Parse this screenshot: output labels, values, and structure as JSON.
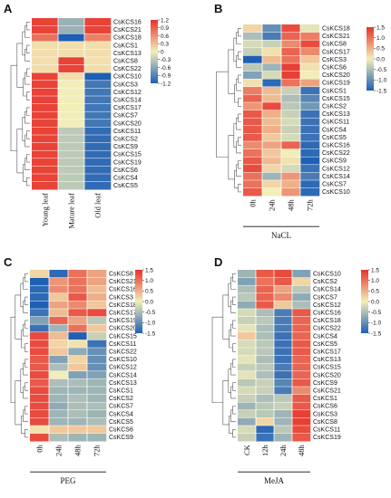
{
  "panels_colors": {
    "low": "#1f5fb4",
    "mid": "#f2eeb8",
    "high": "#e8322b"
  },
  "chart_data": [
    {
      "type": "heatmap",
      "panel": "A",
      "columns": [
        "Young leaf",
        "Mature leaf",
        "Old leaf"
      ],
      "rows": [
        "CsKCS16",
        "CsKCS21",
        "CsKCS18",
        "CsKCS1",
        "CsKCS13",
        "CsKCS8",
        "CsKCS22",
        "CsKCS10",
        "CsKCS3",
        "CsKCS12",
        "CsKCS14",
        "CsKCS17",
        "CsKCS7",
        "CsKCS20",
        "CsKCS11",
        "CsKCS2",
        "CsKCS9",
        "CsKCS15",
        "CsKCS19",
        "CsKCS6",
        "CsKCS4",
        "CsKCS5"
      ],
      "values": [
        [
          1.1,
          -0.5,
          1.1
        ],
        [
          1.1,
          -0.5,
          1.1
        ],
        [
          0.8,
          -1.2,
          0.7
        ],
        [
          0.1,
          0.1,
          0.1
        ],
        [
          0.1,
          0.1,
          0.1
        ],
        [
          0.1,
          1.1,
          0.1
        ],
        [
          0.1,
          1.1,
          0.1
        ],
        [
          1.1,
          0.1,
          -1.2
        ],
        [
          1.1,
          0.0,
          -1.0
        ],
        [
          1.1,
          0.0,
          -1.0
        ],
        [
          1.1,
          0.0,
          -1.0
        ],
        [
          1.1,
          0.0,
          -1.0
        ],
        [
          1.1,
          0.0,
          -1.0
        ],
        [
          1.1,
          0.0,
          -1.0
        ],
        [
          1.1,
          -0.3,
          -1.1
        ],
        [
          1.1,
          -0.3,
          -1.1
        ],
        [
          1.1,
          -0.3,
          -1.1
        ],
        [
          1.1,
          -0.3,
          -1.1
        ],
        [
          1.1,
          -0.3,
          -1.1
        ],
        [
          1.1,
          -0.3,
          -1.1
        ],
        [
          1.1,
          -0.3,
          -1.1
        ],
        [
          1.1,
          -0.3,
          -1.1
        ]
      ],
      "colorbar": {
        "min": -1.2,
        "max": 1.2,
        "ticks": [
          "1.2",
          "0.9",
          "0.6",
          "0.3",
          "0",
          "-0.3",
          "-0.6",
          "-0.9",
          "-1.2"
        ]
      },
      "xlabel": ""
    },
    {
      "type": "heatmap",
      "panel": "B",
      "columns": [
        "0h",
        "24h",
        "48h",
        "72h"
      ],
      "rows": [
        "CsKCS18",
        "CsKCS21",
        "CsKCS8",
        "CsKCS17",
        "CsKCS3",
        "CsKCS6",
        "CsKCS20",
        "CsKCS19",
        "CsKCS1",
        "CsKCS15",
        "CsKCS2",
        "CsKCS13",
        "CsKCS11",
        "CsKCS4",
        "CsKCS5",
        "CsKCS16",
        "CsKCS22",
        "CsKCS9",
        "CsKCS12",
        "CsKCS14",
        "CsKCS7",
        "CsKCS10"
      ],
      "values": [
        [
          0.2,
          -1.0,
          1.3,
          -0.1
        ],
        [
          -0.5,
          -1.2,
          1.1,
          0.9
        ],
        [
          -0.2,
          -0.3,
          0.8,
          1.3
        ],
        [
          -0.3,
          0.1,
          1.1,
          0.8
        ],
        [
          -1.5,
          0.4,
          1.0,
          0.3
        ],
        [
          -0.4,
          -0.6,
          1.4,
          0.1
        ],
        [
          -0.8,
          -0.2,
          1.4,
          0.0
        ],
        [
          0.1,
          -1.4,
          1.0,
          0.6
        ],
        [
          0.9,
          0.4,
          -0.3,
          -1.3
        ],
        [
          1.1,
          0.4,
          -0.5,
          -1.1
        ],
        [
          0.7,
          1.3,
          -0.4,
          -0.9
        ],
        [
          1.2,
          0.5,
          -0.3,
          -1.3
        ],
        [
          1.2,
          0.4,
          -0.2,
          -1.3
        ],
        [
          1.2,
          0.5,
          -0.3,
          -1.3
        ],
        [
          1.2,
          0.3,
          -0.2,
          -1.3
        ],
        [
          0.8,
          0.6,
          1.1,
          -1.4
        ],
        [
          1.0,
          0.3,
          0.0,
          -1.4
        ],
        [
          1.2,
          0.4,
          0.1,
          -1.5
        ],
        [
          1.3,
          0.2,
          -0.2,
          -1.3
        ],
        [
          1.0,
          -0.6,
          0.7,
          -1.2
        ],
        [
          1.0,
          0.2,
          0.5,
          -1.4
        ],
        [
          1.2,
          0.0,
          0.7,
          -1.4
        ]
      ],
      "colorbar": {
        "min": -1.5,
        "max": 1.5,
        "ticks": [
          "1.5",
          "1.0",
          "0.5",
          "0.0",
          "-0.5",
          "-1.0",
          "-1.5"
        ]
      },
      "xlabel": "NaCL"
    },
    {
      "type": "heatmap",
      "panel": "C",
      "columns": [
        "0h",
        "24h",
        "48h",
        "72h"
      ],
      "rows": [
        "CsKCS8",
        "CsKCS21",
        "CsKCS16",
        "CsKCS3",
        "CsKCS18",
        "CsKCS17",
        "CsKCS19",
        "CsKCS20",
        "CsKCS15",
        "CsKCS11",
        "CsKCS22",
        "CsKCS10",
        "CsKCS12",
        "CsKCS14",
        "CsKCS13",
        "CsKCS1",
        "CsKCS2",
        "CsKCS7",
        "CsKCS4",
        "CsKCS5",
        "CsKCS6",
        "CsKCS9"
      ],
      "values": [
        [
          0.2,
          -1.4,
          1.0,
          0.6
        ],
        [
          -1.5,
          0.7,
          1.0,
          0.6
        ],
        [
          -1.4,
          0.8,
          1.0,
          0.4
        ],
        [
          -1.4,
          0.3,
          1.2,
          0.5
        ],
        [
          -1.5,
          0.6,
          0.8,
          0.3
        ],
        [
          -1.3,
          0.4,
          1.2,
          1.3
        ],
        [
          -0.8,
          1.1,
          0.6,
          -0.4
        ],
        [
          -1.3,
          -0.6,
          1.0,
          0.3
        ],
        [
          1.3,
          0.4,
          -1.5,
          -0.3
        ],
        [
          1.3,
          0.2,
          0.1,
          -1.3
        ],
        [
          1.3,
          0.3,
          -0.7,
          -1.0
        ],
        [
          1.2,
          -0.8,
          0.2,
          -1.0
        ],
        [
          1.2,
          -0.5,
          0.3,
          -1.0
        ],
        [
          1.3,
          0.0,
          -0.8,
          -0.8
        ],
        [
          1.2,
          -0.5,
          -0.5,
          -0.6
        ],
        [
          1.3,
          -0.6,
          -0.6,
          -0.6
        ],
        [
          1.3,
          -0.6,
          -0.5,
          -0.6
        ],
        [
          1.3,
          -0.7,
          -0.5,
          -0.5
        ],
        [
          1.3,
          -0.6,
          -0.5,
          -0.6
        ],
        [
          1.3,
          -0.6,
          -0.6,
          -0.5
        ],
        [
          0.1,
          0.3,
          0.3,
          0.3
        ],
        [
          1.3,
          -0.5,
          -0.6,
          -0.6
        ]
      ],
      "colorbar": {
        "min": -1.5,
        "max": 1.5,
        "ticks": [
          "1.5",
          "1.0",
          "0.5",
          "0.0",
          "-0.5",
          "-1.0",
          "-1.5"
        ]
      },
      "xlabel": "PEG"
    },
    {
      "type": "heatmap",
      "panel": "D",
      "columns": [
        "CK",
        "12h",
        "24h",
        "48h"
      ],
      "rows": [
        "CsKCS10",
        "CsKCS2",
        "CsKCS14",
        "CsKCS7",
        "CsKCS12",
        "CsKCS16",
        "CsKCS18",
        "CsKCS22",
        "CsKCS4",
        "CsKCS5",
        "CsKCS17",
        "CsKCS13",
        "CsKCS15",
        "CsKCS20",
        "CsKCS9",
        "CsKCS21",
        "CsKCS1",
        "CsKCS6",
        "CsKCS3",
        "CsKCS8",
        "CsKCS11",
        "CsKCS19"
      ],
      "values": [
        [
          -0.6,
          1.2,
          1.3,
          -0.8
        ],
        [
          -0.8,
          1.0,
          1.2,
          0.2
        ],
        [
          -0.5,
          1.1,
          0.6,
          -0.4
        ],
        [
          -0.4,
          1.1,
          0.8,
          -0.7
        ],
        [
          -0.7,
          1.2,
          0.3,
          -0.5
        ],
        [
          -0.2,
          -0.5,
          -1.2,
          1.2
        ],
        [
          -0.3,
          -0.4,
          -1.2,
          1.1
        ],
        [
          -0.1,
          -0.5,
          -1.2,
          1.1
        ],
        [
          0.3,
          -0.5,
          -1.3,
          1.1
        ],
        [
          -0.2,
          -0.4,
          -1.3,
          1.2
        ],
        [
          -0.2,
          -0.4,
          -1.3,
          1.2
        ],
        [
          -0.1,
          -0.5,
          -1.3,
          1.1
        ],
        [
          -0.3,
          -0.4,
          -1.2,
          1.1
        ],
        [
          -0.1,
          -0.5,
          -1.3,
          1.1
        ],
        [
          -0.4,
          -0.3,
          -1.1,
          1.2
        ],
        [
          -0.2,
          -0.3,
          -1.2,
          0.8
        ],
        [
          -0.3,
          -0.5,
          -0.4,
          1.2
        ],
        [
          -0.6,
          -0.4,
          -0.3,
          1.2
        ],
        [
          -0.3,
          -0.4,
          -0.6,
          1.4
        ],
        [
          -0.7,
          0.2,
          -0.6,
          1.4
        ],
        [
          -0.2,
          -1.4,
          -0.4,
          1.3
        ],
        [
          -0.3,
          -1.3,
          -0.6,
          1.2
        ]
      ],
      "colorbar": {
        "min": -1.5,
        "max": 1.5,
        "ticks": [
          "1.5",
          "1.0",
          "0.5",
          "0.0",
          "-0.5",
          "-1.0",
          "-1.5"
        ]
      },
      "xlabel": "MeJA"
    }
  ]
}
